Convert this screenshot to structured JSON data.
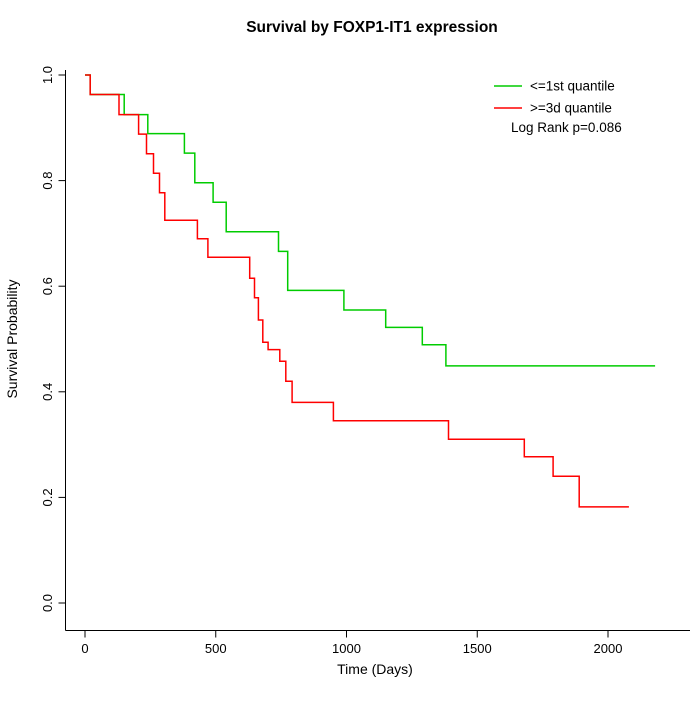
{
  "figure": {
    "title": "Survival by FOXP1-IT1 expression"
  },
  "chart_data": {
    "type": "line",
    "chart_style": "kaplan-meier-step",
    "title": "Survival by FOXP1-IT1 expression",
    "xlabel": "Time (Days)",
    "ylabel": "Survival Probability",
    "xlim": [
      0,
      2200
    ],
    "ylim": [
      0.0,
      1.0
    ],
    "xticks": [
      0,
      500,
      1000,
      1500,
      2000
    ],
    "xtick_labels": [
      "0",
      "500",
      "1000",
      "1500",
      "2000"
    ],
    "yticks": [
      0.0,
      0.2,
      0.4,
      0.6,
      0.8,
      1.0
    ],
    "ytick_labels": [
      "0.0",
      "0.2",
      "0.4",
      "0.6",
      "0.8",
      "1.0"
    ],
    "grid": false,
    "legend_position": "top-right",
    "annotation": "Log Rank p=0.086",
    "axis_color": "#000000",
    "series": [
      {
        "name": "<=1st quantile",
        "color": "#00cc00",
        "points": [
          [
            0,
            1.0
          ],
          [
            20,
            0.963
          ],
          [
            150,
            0.925
          ],
          [
            240,
            0.889
          ],
          [
            380,
            0.852
          ],
          [
            420,
            0.796
          ],
          [
            490,
            0.759
          ],
          [
            540,
            0.703
          ],
          [
            740,
            0.666
          ],
          [
            775,
            0.592
          ],
          [
            990,
            0.555
          ],
          [
            1150,
            0.522
          ],
          [
            1290,
            0.489
          ],
          [
            1380,
            0.449
          ],
          [
            2180,
            0.449
          ]
        ]
      },
      {
        "name": ">=3d quantile",
        "color": "#ff0000",
        "points": [
          [
            0,
            1.0
          ],
          [
            20,
            0.963
          ],
          [
            130,
            0.925
          ],
          [
            205,
            0.888
          ],
          [
            235,
            0.851
          ],
          [
            262,
            0.814
          ],
          [
            285,
            0.777
          ],
          [
            305,
            0.725
          ],
          [
            430,
            0.69
          ],
          [
            470,
            0.655
          ],
          [
            630,
            0.615
          ],
          [
            648,
            0.578
          ],
          [
            663,
            0.536
          ],
          [
            680,
            0.494
          ],
          [
            700,
            0.48
          ],
          [
            745,
            0.458
          ],
          [
            768,
            0.42
          ],
          [
            792,
            0.38
          ],
          [
            950,
            0.345
          ],
          [
            1390,
            0.31
          ],
          [
            1680,
            0.277
          ],
          [
            1790,
            0.24
          ],
          [
            1890,
            0.182
          ],
          [
            2080,
            0.182
          ]
        ]
      }
    ]
  }
}
